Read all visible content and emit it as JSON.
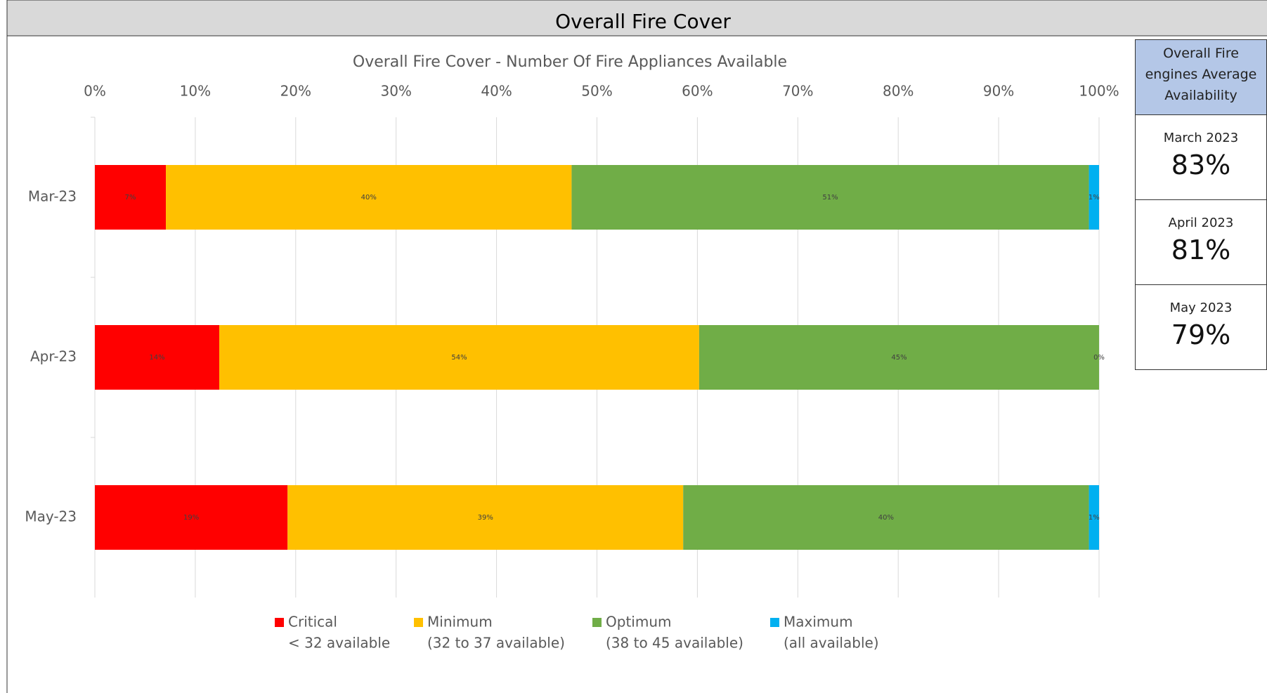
{
  "header": {
    "title": "Overall Fire Cover"
  },
  "chart_data": {
    "type": "bar",
    "orientation": "horizontal",
    "stacking": "percent",
    "title": "Overall Fire Cover  - Number Of Fire Appliances Available",
    "categories": [
      "Mar-23",
      "Apr-23",
      "May-23"
    ],
    "series": [
      {
        "name": "Critical",
        "description": "< 32 available",
        "color": "#ff0000",
        "values": [
          7,
          14,
          19
        ],
        "value_labels": [
          "7%",
          "14%",
          "19%"
        ]
      },
      {
        "name": "Minimum",
        "description": "(32 to 37 available)",
        "color": "#ffc000",
        "values": [
          40,
          54,
          39
        ],
        "value_labels": [
          "40%",
          "54%",
          "39%"
        ]
      },
      {
        "name": "Optimum",
        "description": "(38 to 45 available)",
        "color": "#70ad47",
        "values": [
          51,
          45,
          40
        ],
        "value_labels": [
          "51%",
          "45%",
          "40%"
        ]
      },
      {
        "name": "Maximum",
        "description": "(all available)",
        "color": "#00b0f0",
        "values": [
          1,
          0,
          1
        ],
        "value_labels": [
          "1%",
          "0%",
          "1%"
        ]
      }
    ],
    "xlim": [
      0,
      100
    ],
    "xticks": [
      {
        "value": 0,
        "label": "0%"
      },
      {
        "value": 10,
        "label": "10%"
      },
      {
        "value": 20,
        "label": "20%"
      },
      {
        "value": 30,
        "label": "30%"
      },
      {
        "value": 40,
        "label": "40%"
      },
      {
        "value": 50,
        "label": "50%"
      },
      {
        "value": 60,
        "label": "60%"
      },
      {
        "value": 70,
        "label": "70%"
      },
      {
        "value": 80,
        "label": "80%"
      },
      {
        "value": 90,
        "label": "90%"
      },
      {
        "value": 100,
        "label": "100%"
      }
    ],
    "grid": true,
    "legend": "bottom"
  },
  "side_panel": {
    "title": "Overall Fire engines Average Availability",
    "rows": [
      {
        "label": "March 2023",
        "value": "83%"
      },
      {
        "label": "April 2023",
        "value": "81%"
      },
      {
        "label": "May 2023",
        "value": "79%"
      }
    ]
  }
}
